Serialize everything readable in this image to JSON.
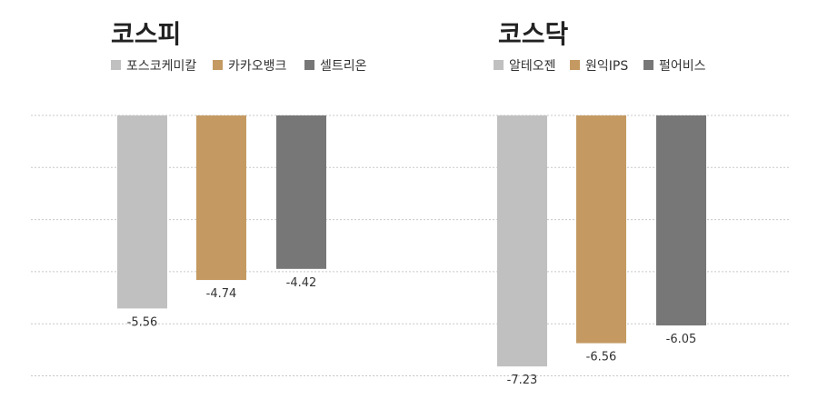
{
  "chart_data": [
    {
      "type": "bar",
      "title": "코스피",
      "categories": [
        "포스코케미칼",
        "카카오뱅크",
        "셀트리온"
      ],
      "values": [
        -5.56,
        -4.74,
        -4.42
      ],
      "colors": [
        "#c0c0c0",
        "#c49a62",
        "#777777"
      ],
      "value_labels": [
        "-5.56",
        "-4.74",
        "-4.42"
      ],
      "ylim": [
        -7.5,
        0
      ],
      "grid": true,
      "legend": "top-left"
    },
    {
      "type": "bar",
      "title": "코스닥",
      "categories": [
        "알테오젠",
        "원익IPS",
        "펄어비스"
      ],
      "values": [
        -7.23,
        -6.56,
        -6.05
      ],
      "colors": [
        "#c0c0c0",
        "#c49a62",
        "#777777"
      ],
      "value_labels": [
        "-7.23",
        "-6.56",
        "-6.05"
      ],
      "ylim": [
        -7.5,
        0
      ],
      "grid": true,
      "legend": "top-left"
    }
  ]
}
